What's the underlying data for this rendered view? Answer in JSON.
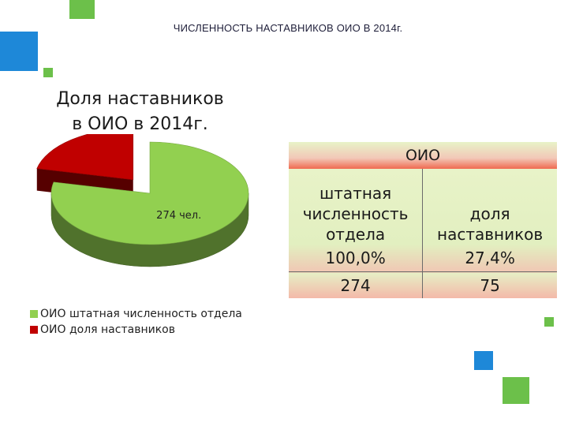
{
  "colors": {
    "accent_blue": "#1e88d8",
    "accent_green": "#6cc04a",
    "series_green": "#92d050",
    "series_red": "#c00000"
  },
  "slide": {
    "title": "ЧИСЛЕННОСТЬ НАСТАВНИКОВ ОИО В 2014г."
  },
  "chart_data": {
    "type": "pie",
    "title_lines": [
      "Доля наставников",
      "в ОИО в 2014г."
    ],
    "slices": [
      {
        "name": "ОИО штатная численность отдела",
        "value": 274,
        "color": "#92d050",
        "label": "274 чел."
      },
      {
        "name": "ОИО доля наставников",
        "value": 75,
        "color": "#c00000",
        "label": ""
      }
    ],
    "legend": [
      {
        "label": "ОИО штатная численность отдела",
        "color": "#92d050"
      },
      {
        "label": "ОИО доля наставников",
        "color": "#c00000"
      }
    ],
    "legend_position": "bottom-left"
  },
  "table": {
    "header": "ОИО",
    "col1_label_lines": [
      "штатная",
      "численность",
      "отдела"
    ],
    "col2_label_lines": [
      "доля",
      "наставников"
    ],
    "percent_row": [
      "100,0%",
      "27,4%"
    ],
    "count_row": [
      "274",
      "75"
    ]
  }
}
